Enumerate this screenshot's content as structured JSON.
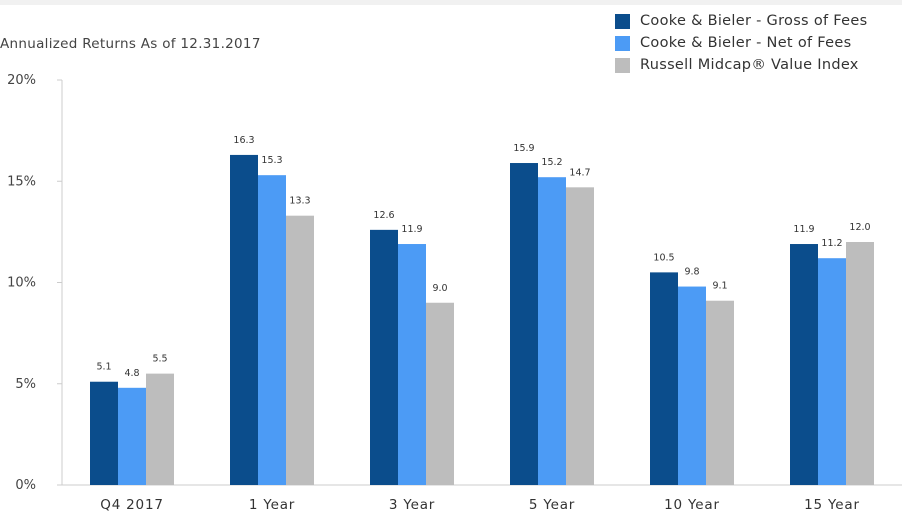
{
  "subtitle": "Annualized Returns As of 12.31.2017",
  "colors": {
    "gross": "#0B4D8C",
    "net": "#4C9BF5",
    "index": "#BDBDBD",
    "axis": "#CCCCCC"
  },
  "chart_data": {
    "type": "bar",
    "title": "",
    "subtitle": "Annualized Returns As of 12.31.2017",
    "xlabel": "",
    "ylabel": "",
    "ylim": [
      0,
      20
    ],
    "yticks": [
      0,
      5,
      10,
      15,
      20
    ],
    "ytick_labels": [
      "0%",
      "5%",
      "10%",
      "15%",
      "20%"
    ],
    "categories": [
      "Q4 2017",
      "1 Year",
      "3 Year",
      "5 Year",
      "10 Year",
      "15 Year"
    ],
    "grid": false,
    "legend_position": "top-right",
    "series": [
      {
        "name": "Cooke & Bieler - Gross of Fees",
        "color": "#0B4D8C",
        "values": [
          5.1,
          16.3,
          12.6,
          15.9,
          10.5,
          11.9
        ],
        "labels": [
          "5.1",
          "16.3",
          "12.6",
          "15.9",
          "10.5",
          "11.9"
        ]
      },
      {
        "name": "Cooke & Bieler - Net of Fees",
        "color": "#4C9BF5",
        "values": [
          4.8,
          15.3,
          11.9,
          15.2,
          9.8,
          11.2
        ],
        "labels": [
          "4.8",
          "15.3",
          "11.9",
          "15.2",
          "9.8",
          "11.2"
        ]
      },
      {
        "name": "Russell Midcap® Value Index",
        "color": "#BDBDBD",
        "values": [
          5.5,
          13.3,
          9.0,
          14.7,
          9.1,
          12.0
        ],
        "labels": [
          "5.5",
          "13.3",
          "9.0",
          "14.7",
          "9.1",
          "12.0"
        ]
      }
    ]
  }
}
